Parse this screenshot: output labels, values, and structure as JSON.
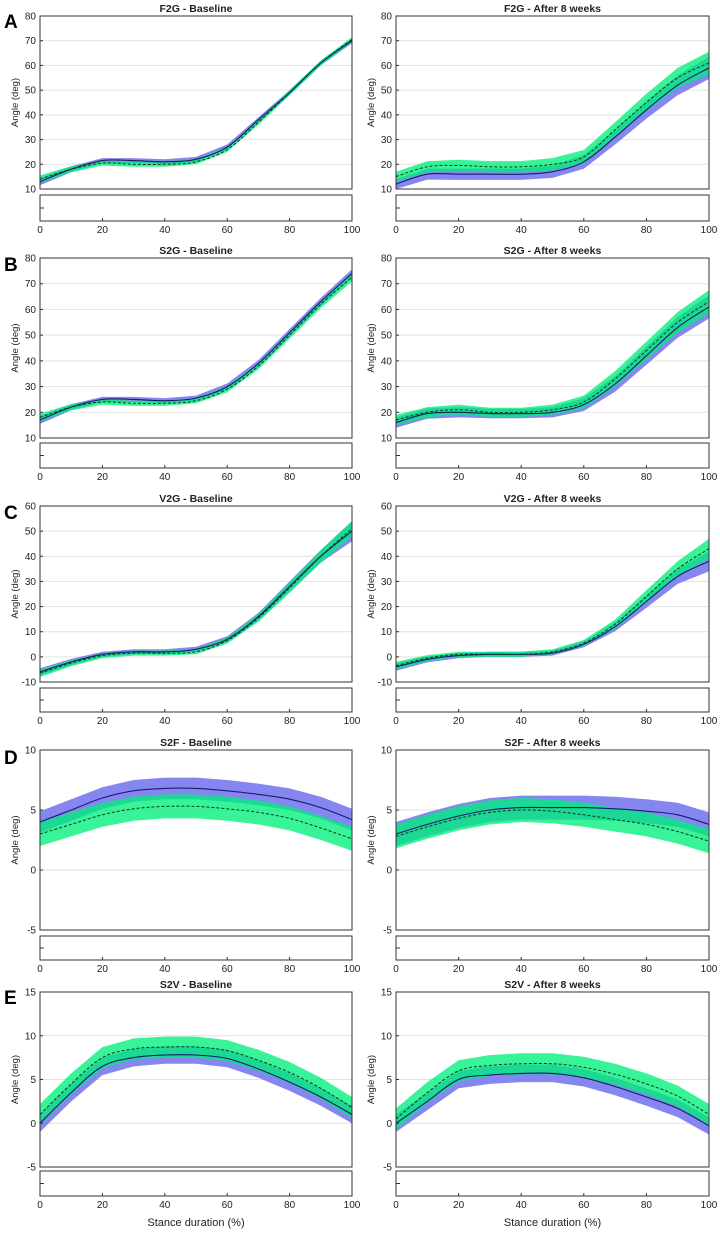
{
  "figure": {
    "xlabel": "Stance duration (%)",
    "ylabel": "Angle (deg)",
    "colors": {
      "blue_band": "#8080f0",
      "green_band": "#00f07a",
      "overlap": "#22a87c",
      "mean_line": "#1a1a6e",
      "dashed_line": "#0a3a1a",
      "grid": "#e2e2e2",
      "axis": "#333333"
    },
    "x_ticks": [
      "0",
      "20",
      "40",
      "60",
      "80",
      "100"
    ]
  },
  "chart_data": [
    {
      "type": "line",
      "panel": "A",
      "side": "left",
      "title": "F2G - Baseline",
      "ylim": [
        10,
        80
      ],
      "yticks": [
        "10",
        "20",
        "30",
        "40",
        "50",
        "60",
        "70",
        "80"
      ],
      "x": [
        0,
        10,
        20,
        30,
        40,
        50,
        60,
        70,
        80,
        90,
        100
      ],
      "series": [
        {
          "name": "solid",
          "values": [
            13,
            18,
            21.5,
            21.5,
            21,
            22,
            27,
            38,
            49,
            61,
            70
          ],
          "sd": [
            1.5,
            1.2,
            1,
            1,
            1,
            1,
            1,
            1,
            1,
            1,
            1
          ]
        },
        {
          "name": "dashed",
          "values": [
            14,
            18,
            20.5,
            20,
            20,
            21,
            26,
            37,
            49,
            61,
            70.5
          ],
          "sd": [
            1.5,
            1.2,
            1,
            1,
            1,
            1,
            1,
            1,
            1,
            1,
            1
          ]
        }
      ]
    },
    {
      "type": "line",
      "panel": "A",
      "side": "right",
      "title": "F2G - After 8 weeks",
      "ylim": [
        10,
        80
      ],
      "yticks": [
        "10",
        "20",
        "30",
        "40",
        "50",
        "60",
        "70",
        "80"
      ],
      "x": [
        0,
        10,
        20,
        30,
        40,
        50,
        60,
        70,
        80,
        90,
        100
      ],
      "series": [
        {
          "name": "solid",
          "values": [
            12,
            16,
            16,
            16,
            16,
            17,
            21,
            31,
            42,
            52,
            59
          ],
          "sd": [
            2,
            2.2,
            2.3,
            2.3,
            2.3,
            2.5,
            2.8,
            3,
            3.5,
            4,
            4.5
          ]
        },
        {
          "name": "dashed",
          "values": [
            15,
            19,
            19.5,
            19,
            19,
            20,
            23,
            34,
            45,
            55,
            61
          ],
          "sd": [
            2,
            2.2,
            2.3,
            2.3,
            2.3,
            2.5,
            2.8,
            3,
            3.5,
            4,
            4.5
          ]
        }
      ]
    },
    {
      "type": "line",
      "panel": "B",
      "side": "left",
      "title": "S2G - Baseline",
      "ylim": [
        10,
        80
      ],
      "yticks": [
        "10",
        "20",
        "30",
        "40",
        "50",
        "60",
        "70",
        "80"
      ],
      "x": [
        0,
        10,
        20,
        30,
        40,
        50,
        60,
        70,
        80,
        90,
        100
      ],
      "series": [
        {
          "name": "solid",
          "values": [
            17,
            22,
            25,
            25,
            24.5,
            25.5,
            30,
            39,
            51,
            63,
            74
          ],
          "sd": [
            1.5,
            1.2,
            1,
            1,
            1,
            1,
            1.2,
            1.3,
            1.4,
            1.5,
            1.6
          ]
        },
        {
          "name": "dashed",
          "values": [
            18,
            22,
            24,
            23.5,
            23.5,
            24.5,
            29,
            38,
            50,
            62,
            72.5
          ],
          "sd": [
            1.5,
            1.2,
            1,
            1,
            1,
            1,
            1.2,
            1.3,
            1.4,
            1.5,
            1.6
          ]
        }
      ]
    },
    {
      "type": "line",
      "panel": "B",
      "side": "right",
      "title": "S2G - After 8 weeks",
      "ylim": [
        10,
        80
      ],
      "yticks": [
        "10",
        "20",
        "30",
        "40",
        "50",
        "60",
        "70",
        "80"
      ],
      "x": [
        0,
        10,
        20,
        30,
        40,
        50,
        60,
        70,
        80,
        90,
        100
      ],
      "series": [
        {
          "name": "solid",
          "values": [
            16,
            19.5,
            20,
            19.5,
            19.5,
            20,
            23,
            31,
            42,
            53,
            61
          ],
          "sd": [
            2,
            2,
            2,
            1.8,
            1.8,
            2,
            2.5,
            3,
            3.5,
            4,
            4.5
          ]
        },
        {
          "name": "dashed",
          "values": [
            17,
            20,
            21,
            20,
            20,
            21,
            24,
            33,
            44,
            55,
            63
          ],
          "sd": [
            2,
            2,
            2,
            1.8,
            1.8,
            2,
            2.5,
            3,
            3.5,
            4,
            4.5
          ]
        }
      ]
    },
    {
      "type": "line",
      "panel": "C",
      "side": "left",
      "title": "V2G - Baseline",
      "ylim": [
        -10,
        60
      ],
      "yticks": [
        "-10",
        "0",
        "10",
        "20",
        "30",
        "40",
        "50",
        "60"
      ],
      "x": [
        0,
        10,
        20,
        30,
        40,
        50,
        60,
        70,
        80,
        90,
        100
      ],
      "series": [
        {
          "name": "solid",
          "values": [
            -6,
            -2,
            1,
            2,
            2,
            3,
            7,
            16,
            28,
            40,
            50
          ],
          "sd": [
            1.5,
            1.2,
            1,
            1,
            1,
            1,
            1.2,
            1.5,
            2,
            2.5,
            4
          ]
        },
        {
          "name": "dashed",
          "values": [
            -6.5,
            -2.5,
            0.5,
            1.5,
            1.5,
            2,
            6.5,
            15.5,
            27.5,
            40,
            51
          ],
          "sd": [
            1.5,
            1.2,
            1,
            1,
            1,
            1,
            1.2,
            1.5,
            2,
            2.5,
            3
          ]
        }
      ]
    },
    {
      "type": "line",
      "panel": "C",
      "side": "right",
      "title": "V2G - After 8 weeks",
      "ylim": [
        -10,
        60
      ],
      "yticks": [
        "-10",
        "0",
        "10",
        "20",
        "30",
        "40",
        "50",
        "60"
      ],
      "x": [
        0,
        10,
        20,
        30,
        40,
        50,
        60,
        70,
        80,
        90,
        100
      ],
      "series": [
        {
          "name": "solid",
          "values": [
            -4,
            -1,
            0.5,
            1,
            1,
            1.5,
            5,
            12,
            22,
            32,
            38
          ],
          "sd": [
            1.5,
            1.2,
            1,
            1,
            1,
            1,
            1.2,
            1.8,
            2.5,
            3,
            4
          ]
        },
        {
          "name": "dashed",
          "values": [
            -3.5,
            -0.5,
            1,
            1,
            1,
            2,
            5.5,
            13,
            24,
            35,
            43
          ],
          "sd": [
            1.5,
            1.2,
            1,
            1,
            1,
            1,
            1.2,
            1.8,
            2.5,
            3,
            4
          ]
        }
      ]
    },
    {
      "type": "line",
      "panel": "D",
      "side": "left",
      "title": "S2F - Baseline",
      "ylim": [
        -5,
        10
      ],
      "yticks": [
        "-5",
        "0",
        "5",
        "10"
      ],
      "x": [
        0,
        10,
        20,
        30,
        40,
        50,
        60,
        70,
        80,
        90,
        100
      ],
      "series": [
        {
          "name": "solid",
          "values": [
            4,
            5,
            6,
            6.6,
            6.8,
            6.8,
            6.6,
            6.3,
            5.9,
            5.2,
            4.2
          ],
          "sd": [
            0.9,
            0.9,
            0.9,
            0.9,
            0.9,
            0.9,
            0.9,
            0.9,
            0.9,
            0.9,
            0.9
          ]
        },
        {
          "name": "dashed",
          "values": [
            3,
            3.8,
            4.6,
            5.1,
            5.3,
            5.3,
            5.1,
            4.8,
            4.3,
            3.5,
            2.6
          ],
          "sd": [
            1,
            1,
            1,
            1,
            1,
            1,
            1,
            1,
            1,
            1,
            1
          ]
        }
      ]
    },
    {
      "type": "line",
      "panel": "D",
      "side": "right",
      "title": "S2F - After 8 weeks",
      "ylim": [
        -5,
        10
      ],
      "yticks": [
        "-5",
        "0",
        "5",
        "10"
      ],
      "x": [
        0,
        10,
        20,
        30,
        40,
        50,
        60,
        70,
        80,
        90,
        100
      ],
      "series": [
        {
          "name": "solid",
          "values": [
            3,
            3.8,
            4.5,
            5,
            5.2,
            5.2,
            5.2,
            5.1,
            4.9,
            4.6,
            3.8
          ],
          "sd": [
            1,
            1,
            1,
            1,
            1,
            1,
            1,
            1,
            1,
            1,
            1
          ]
        },
        {
          "name": "dashed",
          "values": [
            2.8,
            3.6,
            4.3,
            4.8,
            5,
            4.9,
            4.6,
            4.2,
            3.8,
            3.2,
            2.4
          ],
          "sd": [
            1,
            1,
            1,
            1,
            1,
            1,
            1,
            1,
            1,
            1,
            1
          ]
        }
      ]
    },
    {
      "type": "line",
      "panel": "E",
      "side": "left",
      "title": "S2V - Baseline",
      "ylim": [
        -5,
        15
      ],
      "yticks": [
        "-5",
        "0",
        "5",
        "10",
        "15"
      ],
      "x": [
        0,
        10,
        20,
        30,
        40,
        50,
        60,
        70,
        80,
        90,
        100
      ],
      "series": [
        {
          "name": "solid",
          "values": [
            0,
            3.5,
            6.5,
            7.5,
            7.8,
            7.8,
            7.4,
            6.2,
            4.7,
            3,
            1
          ],
          "sd": [
            1,
            1,
            1,
            1,
            1,
            1,
            1,
            1,
            1,
            1,
            1
          ]
        },
        {
          "name": "dashed",
          "values": [
            1,
            4.5,
            7.5,
            8.5,
            8.7,
            8.7,
            8.3,
            7.2,
            5.8,
            4,
            1.8
          ],
          "sd": [
            1.2,
            1.2,
            1.2,
            1.2,
            1.2,
            1.2,
            1.2,
            1.2,
            1.2,
            1.2,
            1.2
          ]
        }
      ]
    },
    {
      "type": "line",
      "panel": "E",
      "side": "right",
      "title": "S2V - After 8 weeks",
      "ylim": [
        -5,
        15
      ],
      "yticks": [
        "-5",
        "0",
        "5",
        "10",
        "15"
      ],
      "x": [
        0,
        10,
        20,
        30,
        40,
        50,
        60,
        70,
        80,
        90,
        100
      ],
      "series": [
        {
          "name": "solid",
          "values": [
            0,
            2.5,
            5,
            5.5,
            5.7,
            5.7,
            5.2,
            4.2,
            3,
            1.7,
            -0.3
          ],
          "sd": [
            1,
            1,
            1,
            1,
            1,
            1,
            1,
            1,
            1,
            1,
            1
          ]
        },
        {
          "name": "dashed",
          "values": [
            0.5,
            3.5,
            6,
            6.6,
            6.8,
            6.8,
            6.4,
            5.6,
            4.5,
            3.1,
            1
          ],
          "sd": [
            1.2,
            1.2,
            1.2,
            1.2,
            1.2,
            1.2,
            1.2,
            1.2,
            1.2,
            1.2,
            1.2
          ]
        }
      ]
    }
  ]
}
